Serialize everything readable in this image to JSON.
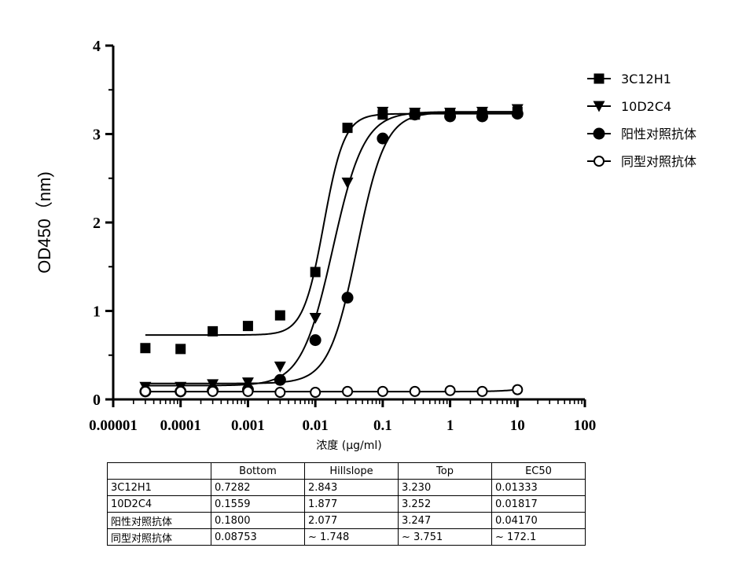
{
  "title": "",
  "chart_data": {
    "type": "scatter",
    "xscale": "log",
    "xlim": [
      1e-05,
      100
    ],
    "ylim": [
      0,
      4
    ],
    "xticks": [
      1e-05,
      0.0001,
      0.001,
      0.01,
      0.1,
      1,
      10,
      100
    ],
    "xtick_labels": [
      "0.00001",
      "0.0001",
      "0.001",
      "0.01",
      "0.1",
      "1",
      "10",
      "100"
    ],
    "yticks": [
      0,
      1,
      2,
      3,
      4
    ],
    "ytick_labels": [
      "0",
      "1",
      "2",
      "3",
      "4"
    ],
    "xlabel": "浓度 (µg/ml)",
    "ylabel": "OD450（nm)",
    "legend_position": "top-right",
    "grid": false,
    "series": [
      {
        "name": "3C12H1",
        "marker": "square",
        "x": [
          3e-05,
          0.0001,
          0.0003,
          0.001,
          0.003,
          0.01,
          0.03,
          0.1,
          0.3,
          1,
          3,
          10
        ],
        "y": [
          0.58,
          0.57,
          0.77,
          0.83,
          0.95,
          1.44,
          3.07,
          3.22,
          3.22,
          3.24,
          3.22,
          3.25
        ],
        "fit": {
          "bottom": 0.7282,
          "hillslope": 2.843,
          "top": 3.23,
          "ec50": 0.01333
        }
      },
      {
        "name": "10D2C4",
        "marker": "triangle-down",
        "x": [
          3e-05,
          0.0001,
          0.0003,
          0.001,
          0.003,
          0.01,
          0.03,
          0.1,
          0.3,
          1,
          3,
          10
        ],
        "y": [
          0.14,
          0.14,
          0.17,
          0.19,
          0.37,
          0.92,
          2.45,
          3.25,
          3.24,
          3.24,
          3.25,
          3.28
        ],
        "fit": {
          "bottom": 0.1559,
          "hillslope": 1.877,
          "top": 3.252,
          "ec50": 0.01817
        }
      },
      {
        "name": "阳性对照抗体",
        "marker": "circle-filled",
        "x": [
          3e-05,
          0.0001,
          0.0003,
          0.001,
          0.003,
          0.01,
          0.03,
          0.1,
          0.3,
          1,
          3,
          10
        ],
        "y": [
          0.09,
          0.09,
          0.1,
          0.11,
          0.22,
          0.67,
          1.15,
          2.95,
          3.22,
          3.2,
          3.2,
          3.23
        ],
        "fit": {
          "bottom": 0.18,
          "hillslope": 2.077,
          "top": 3.247,
          "ec50": 0.0417
        }
      },
      {
        "name": "同型对照抗体",
        "marker": "circle-open",
        "x": [
          3e-05,
          0.0001,
          0.0003,
          0.001,
          0.003,
          0.01,
          0.03,
          0.1,
          0.3,
          1,
          3,
          10
        ],
        "y": [
          0.09,
          0.09,
          0.09,
          0.09,
          0.08,
          0.08,
          0.09,
          0.09,
          0.09,
          0.1,
          0.09,
          0.11
        ],
        "fit": {
          "bottom": 0.08753,
          "hillslope": 1.748,
          "top": 3.751,
          "ec50": 172.1
        }
      }
    ]
  },
  "table": {
    "headers": [
      "",
      "Bottom",
      "Hillslope",
      "Top",
      "EC50"
    ],
    "rows": [
      [
        "3C12H1",
        "0.7282",
        "2.843",
        "3.230",
        "0.01333"
      ],
      [
        "10D2C4",
        "0.1559",
        "1.877",
        "3.252",
        "0.01817"
      ],
      [
        "阳性对照抗体",
        "0.1800",
        "2.077",
        "3.247",
        "0.04170"
      ],
      [
        "同型对照抗体",
        "0.08753",
        "~ 1.748",
        "~ 3.751",
        "~ 172.1"
      ]
    ]
  }
}
